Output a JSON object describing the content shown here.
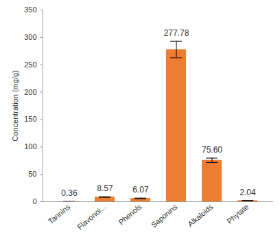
{
  "chart_data": {
    "type": "bar",
    "y_label": "Concentration (mg/g)",
    "categories": [
      "Tannins",
      "Flavonoi...",
      "Phenols",
      "Saponins",
      "Alkaloids",
      "Phytate"
    ],
    "values": [
      0.36,
      8.57,
      6.07,
      277.78,
      75.6,
      2.04
    ],
    "value_labels": [
      "0.36",
      "8.57",
      "6.07",
      "277.78",
      "75.60",
      "2.04"
    ],
    "errors": [
      0.05,
      0.6,
      0.6,
      15,
      4,
      0.2
    ],
    "color": "#ed7d31",
    "ylim": [
      0,
      350
    ],
    "yticks": [
      0,
      50,
      100,
      150,
      200,
      250,
      300,
      350
    ],
    "grid": false,
    "data_labels": true
  }
}
